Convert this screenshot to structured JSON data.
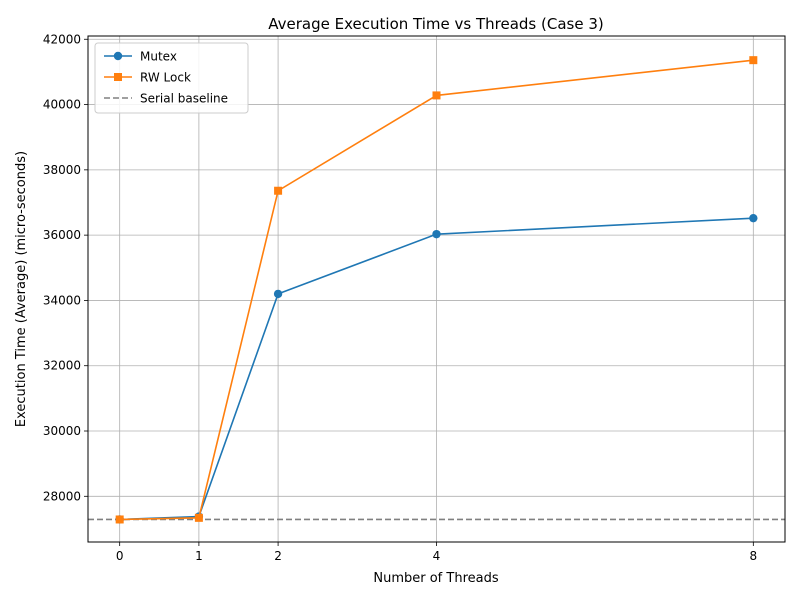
{
  "chart_data": {
    "type": "line",
    "title": "Average Execution Time vs Threads (Case 3)",
    "xlabel": "Number of Threads",
    "ylabel": "Execution Time (Average) (micro-seconds)",
    "x": [
      0,
      1,
      2,
      4,
      8
    ],
    "xlim": [
      -0.4,
      8.4
    ],
    "ylim": [
      26600,
      42100
    ],
    "xticks": [
      0,
      1,
      2,
      4,
      8
    ],
    "yticks": [
      28000,
      30000,
      32000,
      34000,
      36000,
      38000,
      40000,
      42000
    ],
    "grid": true,
    "legend_position": "upper-left",
    "series": [
      {
        "name": "Mutex",
        "marker": "circle",
        "color": "#1f77b4",
        "values": [
          27290,
          27380,
          34200,
          36030,
          36520
        ]
      },
      {
        "name": "RW Lock",
        "marker": "square",
        "color": "#ff7f0e",
        "values": [
          27290,
          27340,
          37360,
          40280,
          41360
        ]
      }
    ],
    "reference_lines": [
      {
        "name": "Serial baseline",
        "y": 27290,
        "color": "#808080",
        "style": "dashed"
      }
    ]
  }
}
